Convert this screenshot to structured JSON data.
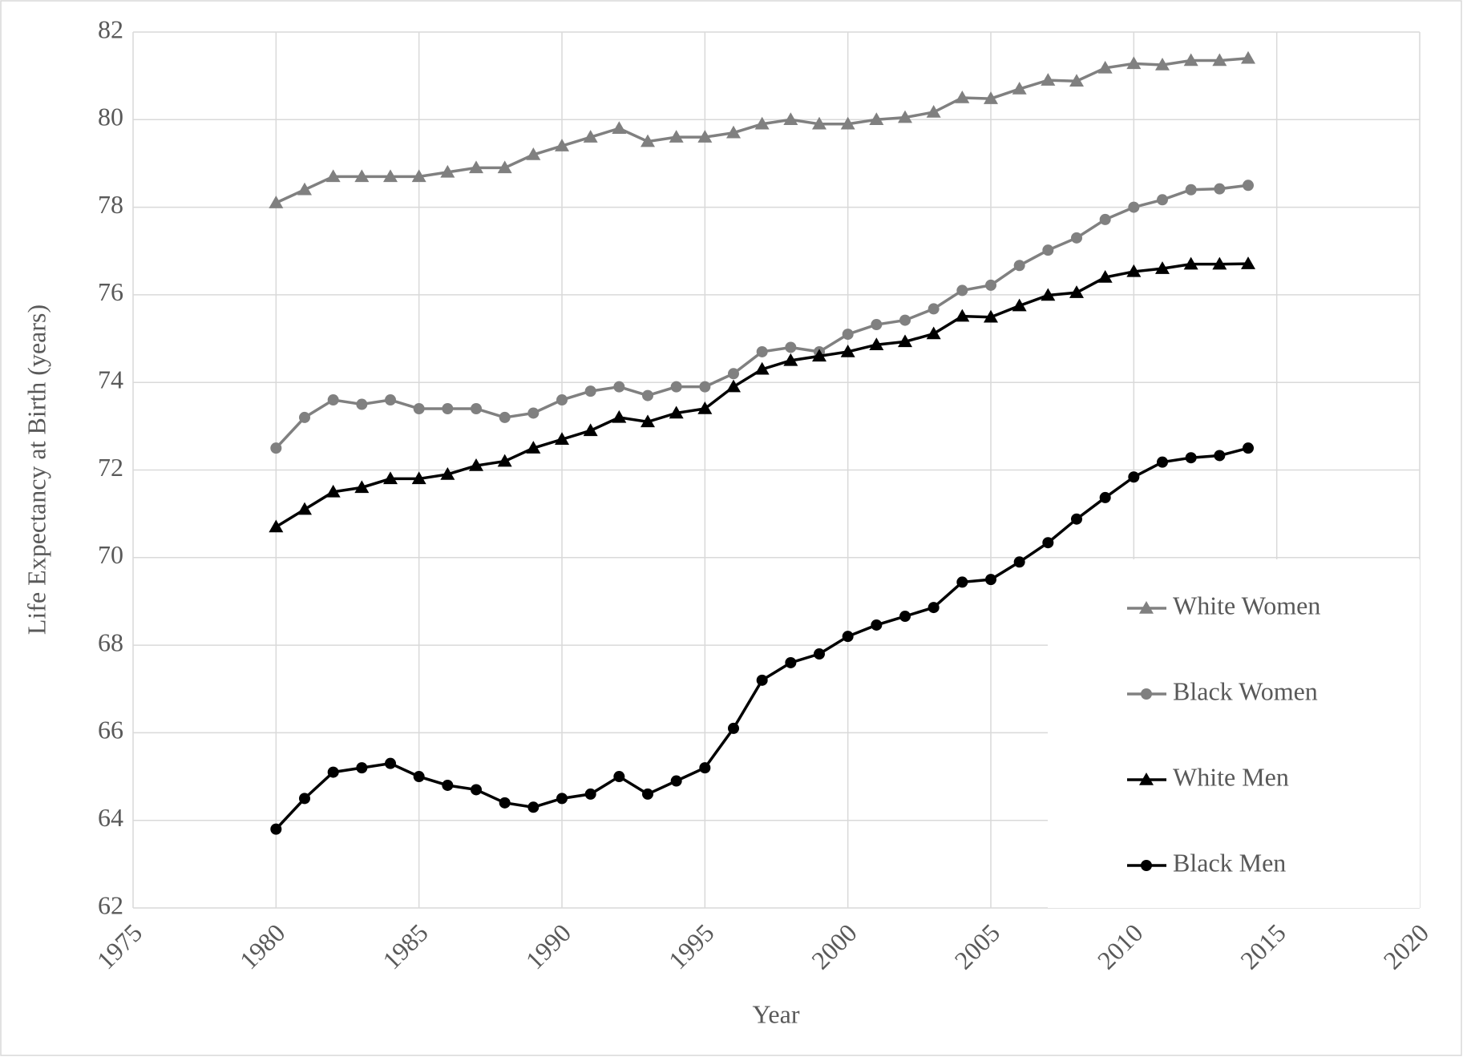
{
  "chart_data": {
    "type": "line",
    "x_label": "Year",
    "y_label": "Life Expectancy at Birth (years)",
    "x": [
      1980,
      1981,
      1982,
      1983,
      1984,
      1985,
      1986,
      1987,
      1988,
      1989,
      1990,
      1991,
      1992,
      1993,
      1994,
      1995,
      1996,
      1997,
      1998,
      1999,
      2000,
      2001,
      2002,
      2003,
      2004,
      2005,
      2006,
      2007,
      2008,
      2009,
      2010,
      2011,
      2012,
      2013,
      2014
    ],
    "series": [
      {
        "name": "White Women",
        "color": "#808080",
        "marker": "triangle",
        "values": [
          78.1,
          78.4,
          78.7,
          78.7,
          78.7,
          78.7,
          78.8,
          78.9,
          78.9,
          79.2,
          79.4,
          79.6,
          79.8,
          79.5,
          79.6,
          79.6,
          79.7,
          79.9,
          80.0,
          79.9,
          79.9,
          80.0,
          80.05,
          80.17,
          80.5,
          80.48,
          80.7,
          80.9,
          80.88,
          81.18,
          81.28,
          81.25,
          81.35,
          81.35,
          81.4
        ]
      },
      {
        "name": "Black Women",
        "color": "#808080",
        "marker": "circle",
        "values": [
          72.5,
          73.2,
          73.6,
          73.5,
          73.6,
          73.4,
          73.4,
          73.4,
          73.2,
          73.3,
          73.6,
          73.8,
          73.9,
          73.7,
          73.9,
          73.9,
          74.2,
          74.7,
          74.8,
          74.7,
          75.1,
          75.32,
          75.42,
          75.68,
          76.1,
          76.22,
          76.67,
          77.02,
          77.3,
          77.72,
          78.0,
          78.17,
          78.4,
          78.42,
          78.5
        ]
      },
      {
        "name": "White Men",
        "color": "#000000",
        "marker": "triangle",
        "values": [
          70.7,
          71.1,
          71.5,
          71.6,
          71.8,
          71.8,
          71.9,
          72.1,
          72.2,
          72.5,
          72.7,
          72.9,
          73.2,
          73.1,
          73.3,
          73.4,
          73.9,
          74.3,
          74.5,
          74.6,
          74.7,
          74.86,
          74.93,
          75.11,
          75.51,
          75.49,
          75.75,
          75.99,
          76.05,
          76.4,
          76.53,
          76.6,
          76.7,
          76.7,
          76.71
        ]
      },
      {
        "name": "Black Men",
        "color": "#000000",
        "marker": "circle",
        "values": [
          63.8,
          64.5,
          65.1,
          65.2,
          65.3,
          65.0,
          64.8,
          64.7,
          64.4,
          64.3,
          64.5,
          64.6,
          65.0,
          64.6,
          64.9,
          65.2,
          66.1,
          67.2,
          67.6,
          67.8,
          68.2,
          68.46,
          68.66,
          68.86,
          69.44,
          69.5,
          69.9,
          70.34,
          70.88,
          71.37,
          71.84,
          72.18,
          72.28,
          72.33,
          72.5
        ]
      }
    ],
    "xlim": [
      1975,
      2020
    ],
    "xticks": [
      1975,
      1980,
      1985,
      1990,
      1995,
      2000,
      2005,
      2010,
      2015,
      2020
    ],
    "ylim": [
      62,
      82
    ],
    "yticks": [
      62,
      64,
      66,
      68,
      70,
      72,
      74,
      76,
      78,
      80,
      82
    ],
    "grid": true,
    "legend": "lower right"
  }
}
